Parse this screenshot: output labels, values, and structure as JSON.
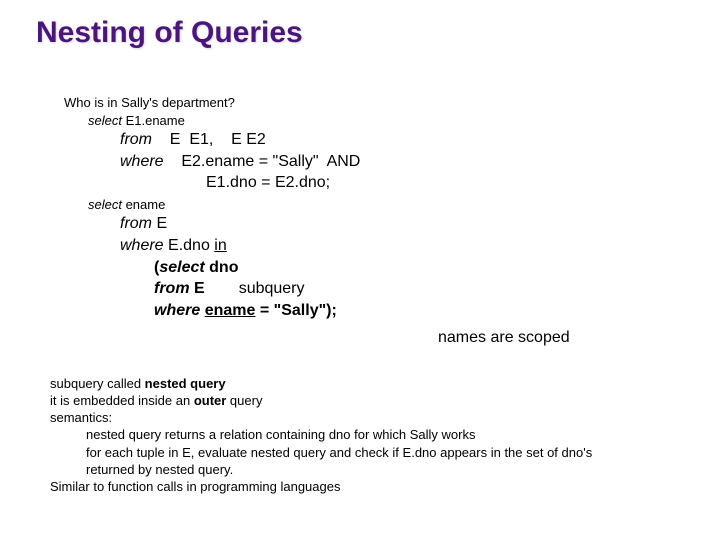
{
  "title": "Nesting of Queries",
  "question": "Who is in Sally's department?",
  "sel1_kw": "select",
  "sel1_rest": " E1.ename",
  "from1_kw": "from",
  "from1_rest": "    E  E1,    E E2",
  "where1_kw": "where",
  "where1_rest": "    E2.ename = \"Sally\"  AND",
  "where1_line2": "E1.dno = E2.dno;",
  "sel2_kw": "select",
  "sel2_rest": " ename",
  "from2_kw": "from",
  "from2_rest": " E",
  "where2_kw": "where",
  "where2_rest": " E.dno ",
  "in_kw": "in",
  "paren_open": "(",
  "sel3_kw": "select",
  "sel3_rest": " dno",
  "from3_kw": "from",
  "from3_rest": " E",
  "subquery_label": "subquery",
  "where3_kw": "where",
  "ename_u": "ename",
  "eq_sally": " = \"Sally\");",
  "scoped": "names are scoped",
  "exp1a": "subquery called ",
  "exp1b": "nested query",
  "exp2a": "it is embedded inside an ",
  "exp2b": "outer",
  "exp2c": " query",
  "exp3": "semantics:",
  "exp4": "nested query returns a relation containing dno for which Sally works",
  "exp5": "for each tuple in E, evaluate nested query and check if E.dno appears in the set  of  dno's",
  "exp6": "returned by nested query.",
  "exp7": "Similar to function calls in programming languages"
}
